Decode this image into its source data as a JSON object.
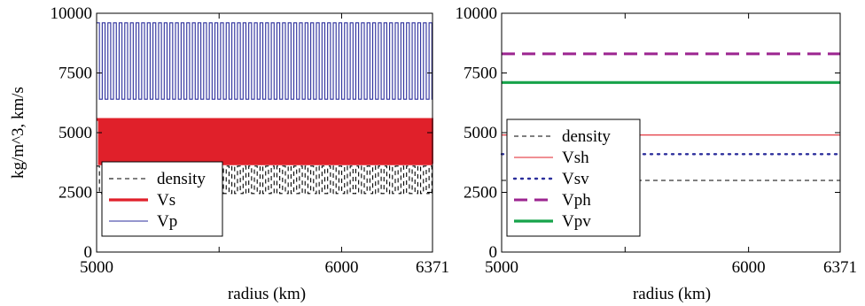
{
  "chart_data": [
    {
      "type": "line",
      "panel": "left",
      "xlabel": "radius (km)",
      "ylabel": "kg/m^3, km/s",
      "xlim": [
        5000,
        6371
      ],
      "ylim": [
        0,
        10000
      ],
      "x_ticks": [
        5000,
        6000,
        6371
      ],
      "x_tick_labels": [
        "5000",
        "6000",
        "6371"
      ],
      "x_minor_ticks": [
        5500
      ],
      "y_ticks": [
        0,
        2500,
        5000,
        7500,
        10000
      ],
      "y_tick_labels": [
        "0",
        "2500",
        "5000",
        "7500",
        "10000"
      ],
      "grid": false,
      "legend_position": "bottom-left",
      "series": [
        {
          "name": "density",
          "style": "dashed",
          "color": "#000000",
          "pattern": "square-wave",
          "low": 2450,
          "high": 3600,
          "period_km": 23,
          "x_start": 5000,
          "x_end": 6371
        },
        {
          "name": "Vs",
          "style": "solid-thick",
          "color": "#e0202a",
          "pattern": "square-wave",
          "low": 3700,
          "high": 5550,
          "period_km": 23,
          "x_start": 5000,
          "x_end": 6371
        },
        {
          "name": "Vp",
          "style": "solid-thin",
          "color": "#2b2e9c",
          "pattern": "square-wave",
          "low": 6400,
          "high": 9600,
          "period_km": 23,
          "x_start": 5000,
          "x_end": 6371
        }
      ]
    },
    {
      "type": "line",
      "panel": "right",
      "xlabel": "radius (km)",
      "ylabel": "",
      "xlim": [
        5000,
        6371
      ],
      "ylim": [
        0,
        10000
      ],
      "x_ticks": [
        5000,
        6000,
        6371
      ],
      "x_tick_labels": [
        "5000",
        "6000",
        "6371"
      ],
      "x_minor_ticks": [
        5500
      ],
      "y_ticks": [
        0,
        2500,
        5000,
        7500,
        10000
      ],
      "y_tick_labels": [
        "0",
        "2500",
        "5000",
        "7500",
        "10000"
      ],
      "grid": false,
      "legend_position": "bottom-left",
      "series": [
        {
          "name": "density",
          "style": "dashed",
          "color": "#000000",
          "x": [
            5000,
            6371
          ],
          "y": [
            3000,
            3000
          ]
        },
        {
          "name": "Vsh",
          "style": "solid-thin",
          "color": "#e0202a",
          "x": [
            5000,
            6371
          ],
          "y": [
            4900,
            4900
          ]
        },
        {
          "name": "Vsv",
          "style": "dotted",
          "color": "#2b2e9c",
          "x": [
            5000,
            6371
          ],
          "y": [
            4100,
            4100
          ]
        },
        {
          "name": "Vph",
          "style": "long-dashed",
          "color": "#9c2590",
          "x": [
            5000,
            6371
          ],
          "y": [
            8300,
            8300
          ]
        },
        {
          "name": "Vpv",
          "style": "solid-thick",
          "color": "#16a34a",
          "x": [
            5000,
            6371
          ],
          "y": [
            7100,
            7100
          ]
        }
      ]
    }
  ]
}
